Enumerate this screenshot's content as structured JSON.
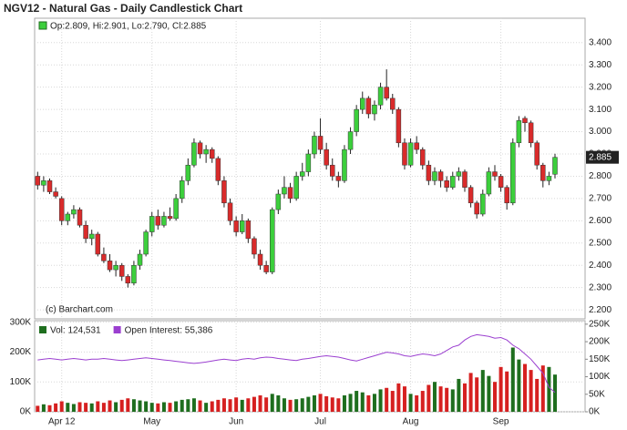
{
  "chart_data": [
    {
      "type": "candlestick",
      "title": "NGV12 - Natural Gas - Daily Candlestick Chart",
      "legend": "Op:2.809, Hi:2.901, Lo:2.790, Cl:2.885",
      "annotation": "(c) Barchart.com",
      "up_color": "#3ccf3c",
      "down_color": "#d92b2b",
      "ylim": [
        2.18,
        3.44
      ],
      "yticks": [
        {
          "value": 2.2,
          "label": "2.200"
        },
        {
          "value": 2.3,
          "label": "2.300"
        },
        {
          "value": 2.4,
          "label": "2.400"
        },
        {
          "value": 2.5,
          "label": "2.500"
        },
        {
          "value": 2.6,
          "label": "2.600"
        },
        {
          "value": 2.7,
          "label": "2.700"
        },
        {
          "value": 2.8,
          "label": "2.800"
        },
        {
          "value": 2.9,
          "label": "2.900"
        },
        {
          "value": 3.0,
          "label": "3.000"
        },
        {
          "value": 3.1,
          "label": "3.100"
        },
        {
          "value": 3.2,
          "label": "3.200"
        },
        {
          "value": 3.3,
          "label": "3.300"
        },
        {
          "value": 3.4,
          "label": "3.400"
        }
      ],
      "xlim": [
        -0.5,
        91
      ],
      "xticks": [
        {
          "value": 4,
          "label": "Apr 12"
        },
        {
          "value": 19,
          "label": "May"
        },
        {
          "value": 33,
          "label": "Jun"
        },
        {
          "value": 47,
          "label": "Jul"
        },
        {
          "value": 62,
          "label": "Aug"
        },
        {
          "value": 77,
          "label": "Sep"
        }
      ],
      "grid": true,
      "ohlc": [
        [
          2.8,
          2.82,
          2.74,
          2.76
        ],
        [
          2.76,
          2.8,
          2.73,
          2.78
        ],
        [
          2.78,
          2.79,
          2.72,
          2.73
        ],
        [
          2.73,
          2.75,
          2.7,
          2.71
        ],
        [
          2.7,
          2.71,
          2.58,
          2.6
        ],
        [
          2.6,
          2.64,
          2.58,
          2.63
        ],
        [
          2.63,
          2.67,
          2.61,
          2.65
        ],
        [
          2.65,
          2.66,
          2.57,
          2.58
        ],
        [
          2.58,
          2.6,
          2.5,
          2.52
        ],
        [
          2.52,
          2.56,
          2.49,
          2.54
        ],
        [
          2.54,
          2.55,
          2.44,
          2.45
        ],
        [
          2.45,
          2.48,
          2.41,
          2.42
        ],
        [
          2.42,
          2.45,
          2.37,
          2.38
        ],
        [
          2.38,
          2.42,
          2.35,
          2.4
        ],
        [
          2.4,
          2.41,
          2.33,
          2.35
        ],
        [
          2.35,
          2.36,
          2.3,
          2.32
        ],
        [
          2.32,
          2.42,
          2.31,
          2.4
        ],
        [
          2.4,
          2.47,
          2.38,
          2.45
        ],
        [
          2.45,
          2.56,
          2.44,
          2.55
        ],
        [
          2.55,
          2.64,
          2.53,
          2.62
        ],
        [
          2.62,
          2.65,
          2.56,
          2.58
        ],
        [
          2.58,
          2.64,
          2.57,
          2.62
        ],
        [
          2.62,
          2.66,
          2.6,
          2.61
        ],
        [
          2.61,
          2.72,
          2.6,
          2.7
        ],
        [
          2.7,
          2.8,
          2.68,
          2.78
        ],
        [
          2.78,
          2.88,
          2.76,
          2.85
        ],
        [
          2.85,
          2.97,
          2.84,
          2.95
        ],
        [
          2.95,
          2.96,
          2.88,
          2.9
        ],
        [
          2.9,
          2.94,
          2.86,
          2.92
        ],
        [
          2.92,
          2.93,
          2.86,
          2.88
        ],
        [
          2.88,
          2.89,
          2.76,
          2.78
        ],
        [
          2.78,
          2.8,
          2.66,
          2.68
        ],
        [
          2.68,
          2.7,
          2.58,
          2.6
        ],
        [
          2.6,
          2.62,
          2.53,
          2.55
        ],
        [
          2.55,
          2.63,
          2.54,
          2.6
        ],
        [
          2.6,
          2.61,
          2.5,
          2.52
        ],
        [
          2.52,
          2.53,
          2.43,
          2.45
        ],
        [
          2.45,
          2.47,
          2.38,
          2.4
        ],
        [
          2.4,
          2.42,
          2.36,
          2.37
        ],
        [
          2.37,
          2.66,
          2.36,
          2.65
        ],
        [
          2.65,
          2.74,
          2.63,
          2.72
        ],
        [
          2.72,
          2.8,
          2.7,
          2.75
        ],
        [
          2.75,
          2.77,
          2.68,
          2.7
        ],
        [
          2.7,
          2.82,
          2.69,
          2.8
        ],
        [
          2.8,
          2.86,
          2.78,
          2.82
        ],
        [
          2.82,
          2.92,
          2.8,
          2.9
        ],
        [
          2.9,
          3.0,
          2.88,
          2.98
        ],
        [
          2.98,
          3.06,
          2.9,
          2.92
        ],
        [
          2.92,
          2.95,
          2.83,
          2.85
        ],
        [
          2.85,
          2.88,
          2.78,
          2.8
        ],
        [
          2.8,
          2.82,
          2.75,
          2.78
        ],
        [
          2.78,
          2.94,
          2.77,
          2.92
        ],
        [
          2.92,
          3.02,
          2.9,
          3.0
        ],
        [
          3.0,
          3.12,
          2.98,
          3.1
        ],
        [
          3.1,
          3.18,
          3.08,
          3.15
        ],
        [
          3.15,
          3.16,
          3.06,
          3.08
        ],
        [
          3.08,
          3.14,
          3.05,
          3.12
        ],
        [
          3.12,
          3.22,
          3.1,
          3.2
        ],
        [
          3.2,
          3.28,
          3.14,
          3.15
        ],
        [
          3.15,
          3.17,
          3.08,
          3.1
        ],
        [
          3.1,
          3.11,
          2.93,
          2.95
        ],
        [
          2.95,
          2.97,
          2.83,
          2.85
        ],
        [
          2.85,
          2.97,
          2.84,
          2.95
        ],
        [
          2.95,
          2.98,
          2.9,
          2.92
        ],
        [
          2.92,
          2.93,
          2.83,
          2.85
        ],
        [
          2.85,
          2.87,
          2.76,
          2.78
        ],
        [
          2.78,
          2.84,
          2.76,
          2.82
        ],
        [
          2.82,
          2.83,
          2.75,
          2.78
        ],
        [
          2.78,
          2.8,
          2.73,
          2.75
        ],
        [
          2.75,
          2.82,
          2.74,
          2.8
        ],
        [
          2.8,
          2.84,
          2.78,
          2.82
        ],
        [
          2.82,
          2.83,
          2.73,
          2.75
        ],
        [
          2.75,
          2.76,
          2.66,
          2.68
        ],
        [
          2.68,
          2.69,
          2.61,
          2.63
        ],
        [
          2.63,
          2.74,
          2.62,
          2.72
        ],
        [
          2.72,
          2.84,
          2.71,
          2.82
        ],
        [
          2.82,
          2.85,
          2.78,
          2.8
        ],
        [
          2.8,
          2.81,
          2.73,
          2.75
        ],
        [
          2.75,
          2.76,
          2.65,
          2.68
        ],
        [
          2.68,
          2.97,
          2.67,
          2.95
        ],
        [
          2.95,
          3.07,
          2.93,
          3.05
        ],
        [
          3.06,
          3.07,
          3.0,
          3.04
        ],
        [
          3.04,
          3.05,
          2.93,
          2.95
        ],
        [
          2.95,
          2.96,
          2.83,
          2.85
        ],
        [
          2.85,
          2.86,
          2.75,
          2.78
        ],
        [
          2.78,
          2.82,
          2.76,
          2.8
        ],
        [
          2.809,
          2.901,
          2.79,
          2.885
        ]
      ]
    },
    {
      "type": "volume",
      "ylim": [
        0,
        305000
      ],
      "yticks": [
        {
          "value": 0,
          "label": "0K"
        },
        {
          "value": 100000,
          "label": "100K"
        },
        {
          "value": 200000,
          "label": "200K"
        },
        {
          "value": 300000,
          "label": "300K"
        }
      ],
      "y2lim": [
        0,
        260000
      ],
      "y2ticks": [
        {
          "value": 0,
          "label": "0K"
        },
        {
          "value": 50000,
          "label": "50K"
        },
        {
          "value": 100000,
          "label": "100K"
        },
        {
          "value": 150000,
          "label": "150K"
        },
        {
          "value": 200000,
          "label": "200K"
        },
        {
          "value": 250000,
          "label": "250K"
        }
      ],
      "series": [
        {
          "name": "Vol: 124,531",
          "color": "#1e6e1e",
          "down_color": "#d62020",
          "values": [
            20000,
            25000,
            22000,
            28000,
            35000,
            30000,
            26000,
            32000,
            30000,
            28000,
            35000,
            30000,
            38000,
            32000,
            40000,
            45000,
            42000,
            38000,
            35000,
            30000,
            28000,
            32000,
            30000,
            35000,
            40000,
            42000,
            45000,
            38000,
            30000,
            35000,
            40000,
            45000,
            42000,
            48000,
            40000,
            45000,
            50000,
            55000,
            48000,
            60000,
            55000,
            45000,
            40000,
            42000,
            45000,
            50000,
            55000,
            60000,
            52000,
            48000,
            45000,
            55000,
            60000,
            70000,
            65000,
            55000,
            60000,
            75000,
            80000,
            70000,
            95000,
            85000,
            60000,
            55000,
            70000,
            90000,
            100000,
            85000,
            80000,
            75000,
            110000,
            95000,
            130000,
            115000,
            140000,
            120000,
            100000,
            150000,
            135000,
            215000,
            175000,
            160000,
            140000,
            110000,
            155000,
            150000,
            124531
          ]
        },
        {
          "name": "Open Interest: 55,386",
          "color": "#9b3fd0",
          "axis": "y2",
          "values": [
            148000,
            150000,
            152000,
            150000,
            148000,
            150000,
            152000,
            150000,
            148000,
            150000,
            150000,
            152000,
            150000,
            148000,
            146000,
            148000,
            150000,
            152000,
            154000,
            152000,
            150000,
            148000,
            146000,
            144000,
            142000,
            140000,
            138000,
            140000,
            142000,
            145000,
            148000,
            150000,
            148000,
            146000,
            150000,
            152000,
            150000,
            154000,
            156000,
            155000,
            152000,
            150000,
            148000,
            146000,
            150000,
            152000,
            155000,
            158000,
            160000,
            158000,
            156000,
            152000,
            148000,
            145000,
            150000,
            155000,
            160000,
            165000,
            170000,
            168000,
            165000,
            160000,
            158000,
            162000,
            165000,
            163000,
            160000,
            165000,
            175000,
            185000,
            190000,
            205000,
            215000,
            220000,
            218000,
            215000,
            210000,
            212000,
            205000,
            190000,
            180000,
            165000,
            150000,
            130000,
            110000,
            70000,
            55386
          ]
        }
      ]
    }
  ]
}
